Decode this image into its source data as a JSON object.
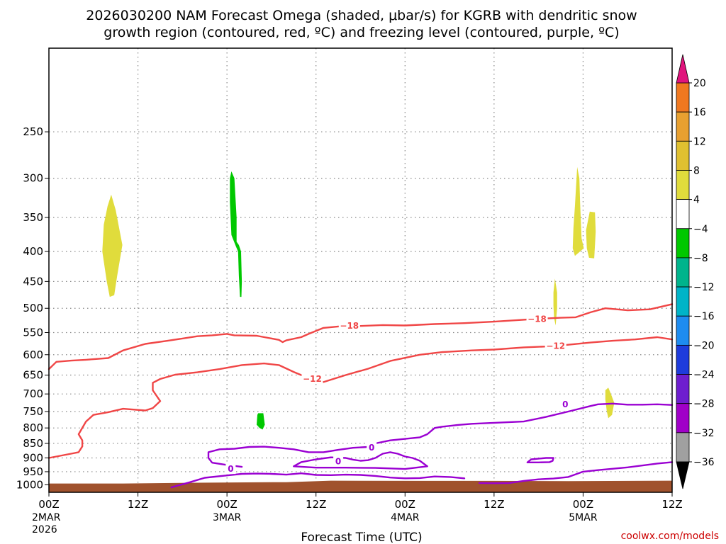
{
  "chart_data": {
    "type": "contour",
    "title": "2026030200 NAM Forecast Omega (shaded, μbar/s) for KGRB with dendritic snow",
    "title_line2": "growth region (contoured, red, ºC) and freezing level (contoured, purple, ºC)",
    "xlabel": "Forecast Time (UTC)",
    "credit": "coolwx.com/models",
    "xlim_hours": [
      0,
      84
    ],
    "ylim_hPa": [
      1030,
      180
    ],
    "x_ticks": [
      {
        "hour": 0,
        "label": "00Z",
        "sub1": "2MAR",
        "sub2": "2026"
      },
      {
        "hour": 12,
        "label": "12Z",
        "sub1": "",
        "sub2": ""
      },
      {
        "hour": 24,
        "label": "00Z",
        "sub1": "3MAR",
        "sub2": ""
      },
      {
        "hour": 36,
        "label": "12Z",
        "sub1": "",
        "sub2": ""
      },
      {
        "hour": 48,
        "label": "00Z",
        "sub1": "4MAR",
        "sub2": ""
      },
      {
        "hour": 60,
        "label": "12Z",
        "sub1": "",
        "sub2": ""
      },
      {
        "hour": 72,
        "label": "00Z",
        "sub1": "5MAR",
        "sub2": ""
      },
      {
        "hour": 84,
        "label": "12Z",
        "sub1": "",
        "sub2": ""
      }
    ],
    "y_ticks": [
      {
        "p": 250,
        "label": "250"
      },
      {
        "p": 300,
        "label": "300"
      },
      {
        "p": 350,
        "label": "350"
      },
      {
        "p": 400,
        "label": "400"
      },
      {
        "p": 450,
        "label": "450"
      },
      {
        "p": 500,
        "label": "500"
      },
      {
        "p": 550,
        "label": "550"
      },
      {
        "p": 600,
        "label": "600"
      },
      {
        "p": 650,
        "label": "650"
      },
      {
        "p": 700,
        "label": "700"
      },
      {
        "p": 750,
        "label": "750"
      },
      {
        "p": 800,
        "label": "800"
      },
      {
        "p": 850,
        "label": "850"
      },
      {
        "p": 900,
        "label": "900"
      },
      {
        "p": 950,
        "label": "950"
      },
      {
        "p": 1000,
        "label": "1000"
      }
    ],
    "colorbar": {
      "levels": [
        {
          "label": "20",
          "color": "#f03c3c"
        },
        {
          "label": "16",
          "color": "#f07820"
        },
        {
          "label": "12",
          "color": "#e8a030"
        },
        {
          "label": "8",
          "color": "#e0c030"
        },
        {
          "label": "4",
          "color": "#e0dc3c"
        },
        {
          "label": "−4",
          "color": "#ffffff"
        },
        {
          "label": "−8",
          "color": "#00c800"
        },
        {
          "label": "−12",
          "color": "#00b48c"
        },
        {
          "label": "−16",
          "color": "#00b4c8"
        },
        {
          "label": "−20",
          "color": "#1e8cf0"
        },
        {
          "label": "−24",
          "color": "#1e3cdc"
        },
        {
          "label": "−28",
          "color": "#6e1ecf"
        },
        {
          "label": "−32",
          "color": "#a000c8"
        },
        {
          "label": "−36",
          "color": "#a0a0a0"
        }
      ],
      "top_arrow_color": "#e0147c",
      "bottom_arrow_color": "#000000"
    },
    "colors": {
      "temp_contour": "#f04646",
      "freezing_contour": "#9a00d2",
      "terrain": "#a0522d",
      "omega_positive": "#e0dc3c",
      "omega_negative": "#00c800"
    },
    "omega_regions": [
      {
        "sign": "positive",
        "points": [
          [
            8.4,
            320
          ],
          [
            9.0,
            340
          ],
          [
            9.9,
            390
          ],
          [
            9.2,
            440
          ],
          [
            8.8,
            475
          ],
          [
            8.2,
            478
          ],
          [
            7.8,
            450
          ],
          [
            7.2,
            400
          ],
          [
            7.4,
            360
          ],
          [
            7.9,
            335
          ]
        ]
      },
      {
        "sign": "negative",
        "points": [
          [
            24.6,
            292
          ],
          [
            25.0,
            300
          ],
          [
            25.3,
            350
          ],
          [
            25.3,
            385
          ],
          [
            25.6,
            390
          ],
          [
            25.9,
            400
          ],
          [
            26.0,
            450
          ],
          [
            25.95,
            478
          ],
          [
            25.75,
            478
          ],
          [
            25.6,
            440
          ],
          [
            25.5,
            400
          ],
          [
            25.2,
            392
          ],
          [
            24.6,
            375
          ],
          [
            24.4,
            330
          ],
          [
            24.4,
            300
          ]
        ]
      },
      {
        "sign": "negative",
        "points": [
          [
            28.2,
            755
          ],
          [
            28.9,
            755
          ],
          [
            29.1,
            790
          ],
          [
            28.8,
            805
          ],
          [
            28.4,
            800
          ],
          [
            28.0,
            790
          ],
          [
            28.1,
            760
          ]
        ]
      },
      {
        "sign": "positive",
        "points": [
          [
            71.2,
            287
          ],
          [
            71.5,
            300
          ],
          [
            71.6,
            330
          ],
          [
            71.7,
            355
          ],
          [
            71.8,
            380
          ],
          [
            72.1,
            395
          ],
          [
            71.5,
            401
          ],
          [
            70.9,
            407
          ],
          [
            70.6,
            395
          ],
          [
            70.7,
            365
          ],
          [
            70.9,
            335
          ]
        ]
      },
      {
        "sign": "positive",
        "points": [
          [
            72.9,
            342
          ],
          [
            73.6,
            343
          ],
          [
            73.7,
            370
          ],
          [
            73.6,
            390
          ],
          [
            73.5,
            411
          ],
          [
            72.8,
            410
          ],
          [
            72.5,
            395
          ],
          [
            72.4,
            368
          ]
        ]
      },
      {
        "sign": "positive",
        "points": [
          [
            68.2,
            445
          ],
          [
            68.5,
            470
          ],
          [
            68.5,
            500
          ],
          [
            68.3,
            535
          ],
          [
            68.1,
            520
          ],
          [
            68.0,
            495
          ],
          [
            68.0,
            470
          ]
        ]
      },
      {
        "sign": "positive",
        "points": [
          [
            75.4,
            683
          ],
          [
            75.7,
            697
          ],
          [
            76.2,
            725
          ],
          [
            75.9,
            760
          ],
          [
            75.4,
            770
          ],
          [
            75.2,
            750
          ],
          [
            75.0,
            715
          ],
          [
            75.0,
            690
          ]
        ]
      }
    ],
    "temp_contours": [
      {
        "label": "−18",
        "color": "#f04646",
        "points": [
          [
            0,
            635
          ],
          [
            1,
            617
          ],
          [
            3,
            614
          ],
          [
            5,
            612
          ],
          [
            8,
            608
          ],
          [
            10,
            590
          ],
          [
            13,
            575
          ],
          [
            16,
            568
          ],
          [
            20,
            558
          ],
          [
            22,
            556
          ],
          [
            24,
            553
          ],
          [
            25,
            556
          ],
          [
            28,
            557
          ],
          [
            31,
            566
          ],
          [
            31.5,
            571
          ],
          [
            32,
            567
          ],
          [
            34,
            560
          ],
          [
            35,
            553
          ],
          [
            37,
            540
          ],
          [
            39,
            537
          ],
          [
            42,
            536
          ],
          [
            45,
            534
          ],
          [
            48,
            535
          ],
          [
            52,
            532
          ],
          [
            56,
            530
          ],
          [
            60,
            527
          ],
          [
            63,
            524
          ],
          [
            66,
            521
          ],
          [
            69,
            519
          ],
          [
            71,
            518
          ],
          [
            73,
            508
          ],
          [
            75,
            500
          ],
          [
            78,
            504
          ],
          [
            81,
            502
          ],
          [
            84,
            492
          ]
        ],
        "label_points": [
          [
            40.5,
            536
          ],
          [
            65.8,
            522
          ]
        ]
      },
      {
        "label": "−12",
        "color": "#f04646",
        "points": [
          [
            0,
            900
          ],
          [
            1,
            895
          ],
          [
            2,
            890
          ],
          [
            3,
            885
          ],
          [
            4,
            880
          ],
          [
            4.5,
            860
          ],
          [
            4.5,
            840
          ],
          [
            4,
            820
          ],
          [
            5,
            780
          ],
          [
            6,
            760
          ],
          [
            8,
            752
          ],
          [
            10,
            742
          ],
          [
            13,
            747
          ],
          [
            14,
            740
          ],
          [
            15,
            720
          ],
          [
            14,
            690
          ],
          [
            14,
            670
          ],
          [
            15,
            660
          ],
          [
            17,
            649
          ],
          [
            20,
            643
          ],
          [
            23,
            635
          ],
          [
            26,
            625
          ],
          [
            29,
            621
          ],
          [
            31,
            625
          ],
          [
            33,
            642
          ],
          [
            34,
            650
          ],
          [
            35,
            655
          ],
          [
            36,
            660
          ],
          [
            37,
            668
          ],
          [
            40,
            650
          ],
          [
            43,
            634
          ],
          [
            46,
            615
          ],
          [
            50,
            600
          ],
          [
            53,
            594
          ],
          [
            57,
            590
          ],
          [
            60,
            588
          ],
          [
            64,
            583
          ],
          [
            67,
            581
          ],
          [
            70,
            577
          ],
          [
            73,
            572
          ],
          [
            76,
            568
          ],
          [
            79,
            565
          ],
          [
            82,
            560
          ],
          [
            84,
            565
          ]
        ],
        "label_points": [
          [
            35.5,
            660
          ],
          [
            68.3,
            580
          ]
        ]
      }
    ],
    "freezing_contours": [
      {
        "label": "0",
        "color": "#9a00d2",
        "points": [
          [
            84,
            915
          ],
          [
            82,
            920
          ],
          [
            78,
            934
          ],
          [
            74,
            944
          ],
          [
            72,
            950
          ],
          [
            70,
            970
          ],
          [
            68,
            976
          ],
          [
            66,
            979
          ],
          [
            64,
            985
          ],
          [
            62,
            993
          ],
          [
            60,
            994
          ],
          [
            58,
            993
          ]
        ]
      },
      {
        "label": "0",
        "color": "#9a00d2",
        "points": [
          [
            16.5,
            1010
          ],
          [
            19,
            990
          ],
          [
            21,
            973
          ],
          [
            24,
            964
          ],
          [
            26,
            958
          ],
          [
            28,
            957
          ],
          [
            30,
            958
          ],
          [
            32,
            961
          ],
          [
            34,
            956
          ],
          [
            36,
            962
          ],
          [
            38,
            963
          ],
          [
            40,
            961
          ],
          [
            42,
            962
          ],
          [
            44,
            966
          ],
          [
            46,
            972
          ],
          [
            48,
            975
          ],
          [
            50,
            974
          ],
          [
            52,
            968
          ],
          [
            54,
            970
          ],
          [
            56,
            975
          ]
        ]
      },
      {
        "label": "0",
        "color": "#9a00d2",
        "points": [
          [
            26,
            932
          ],
          [
            24,
            925
          ],
          [
            22,
            917
          ],
          [
            21.5,
            900
          ],
          [
            21.5,
            880
          ],
          [
            23,
            870
          ],
          [
            25,
            868
          ],
          [
            27,
            862
          ],
          [
            29,
            861
          ],
          [
            31,
            865
          ],
          [
            33,
            870
          ],
          [
            35,
            880
          ],
          [
            37,
            880
          ],
          [
            39,
            872
          ],
          [
            41,
            865
          ],
          [
            43,
            862
          ],
          [
            44,
            850
          ],
          [
            46,
            840
          ],
          [
            48,
            835
          ],
          [
            50,
            830
          ],
          [
            51,
            820
          ],
          [
            52,
            800
          ],
          [
            53,
            796
          ],
          [
            55,
            791
          ],
          [
            57,
            787
          ],
          [
            60,
            784
          ],
          [
            64,
            780
          ],
          [
            67,
            766
          ],
          [
            70,
            750
          ],
          [
            73,
            734
          ],
          [
            74,
            729
          ],
          [
            76,
            727
          ],
          [
            78,
            730
          ],
          [
            80,
            730
          ],
          [
            82,
            729
          ],
          [
            84,
            731
          ]
        ],
        "label_points": [
          [
            24.5,
            940
          ],
          [
            43.5,
            865
          ],
          [
            69.6,
            729
          ]
        ]
      },
      {
        "label": "0",
        "color": "#9a00d2",
        "points": [
          [
            33,
            930
          ],
          [
            34,
            915
          ],
          [
            36,
            905
          ],
          [
            38,
            898
          ],
          [
            40,
            900
          ],
          [
            41,
            906
          ],
          [
            42,
            910
          ],
          [
            43,
            908
          ],
          [
            44,
            900
          ],
          [
            45,
            885
          ],
          [
            46,
            880
          ],
          [
            47,
            885
          ],
          [
            48,
            895
          ],
          [
            49,
            900
          ],
          [
            50,
            910
          ],
          [
            51,
            930
          ],
          [
            48,
            940
          ],
          [
            44,
            936
          ],
          [
            40,
            935
          ],
          [
            36,
            935
          ],
          [
            33,
            930
          ]
        ],
        "label_points": [
          [
            39,
            912
          ]
        ]
      },
      {
        "label": "0",
        "color": "#9a00d2",
        "points": [
          [
            64.5,
            916
          ],
          [
            65,
            905
          ],
          [
            67,
            900
          ],
          [
            68,
            900
          ],
          [
            67.9,
            910
          ],
          [
            67.5,
            915
          ],
          [
            66,
            916
          ],
          [
            64.5,
            916
          ]
        ]
      }
    ],
    "terrain_surface": [
      [
        0,
        995
      ],
      [
        10,
        995
      ],
      [
        20,
        992
      ],
      [
        30,
        990
      ],
      [
        32,
        990
      ],
      [
        38,
        984
      ],
      [
        50,
        985
      ],
      [
        60,
        985
      ],
      [
        70,
        986
      ],
      [
        84,
        984
      ]
    ]
  }
}
